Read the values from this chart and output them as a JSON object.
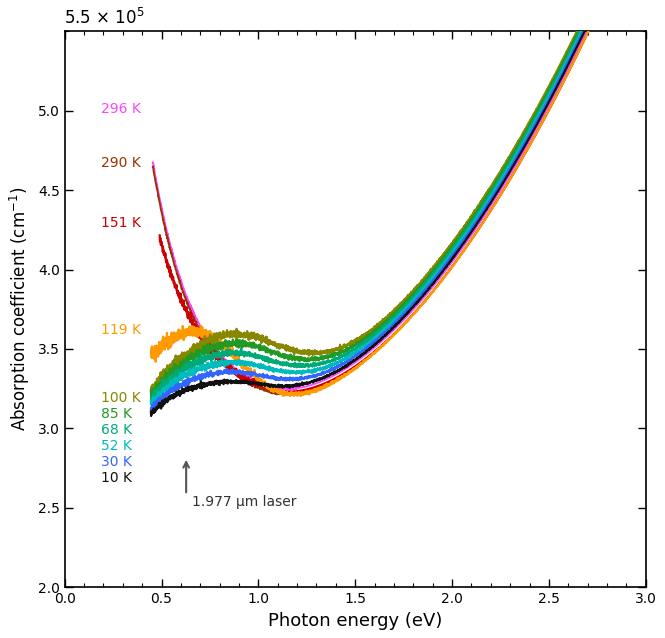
{
  "xlabel": "Photon energy (eV)",
  "ylabel": "Absorption coefficient (cm⁻¹)",
  "xlim": [
    0.0,
    3.0
  ],
  "ylim": [
    200000.0,
    550000.0
  ],
  "yticks": [
    200000.0,
    250000.0,
    300000.0,
    350000.0,
    400000.0,
    450000.0,
    500000.0
  ],
  "xticks": [
    0.0,
    0.5,
    1.0,
    1.5,
    2.0,
    2.5,
    3.0
  ],
  "curves": [
    {
      "label": "296 K",
      "color": "#FF44FF",
      "lw": 1.3,
      "temp": 296
    },
    {
      "label": "290 K",
      "color": "#993300",
      "lw": 1.3,
      "temp": 290
    },
    {
      "label": "151 K",
      "color": "#CC0000",
      "lw": 1.6,
      "temp": 151
    },
    {
      "label": "119 K",
      "color": "#FF9900",
      "lw": 1.6,
      "temp": 119
    },
    {
      "label": "100 K",
      "color": "#888800",
      "lw": 1.6,
      "temp": 100
    },
    {
      "label": "85 K",
      "color": "#229922",
      "lw": 1.6,
      "temp": 85
    },
    {
      "label": "68 K",
      "color": "#00AA77",
      "lw": 1.6,
      "temp": 68
    },
    {
      "label": "52 K",
      "color": "#00BBBB",
      "lw": 1.6,
      "temp": 52
    },
    {
      "label": "30 K",
      "color": "#3366FF",
      "lw": 1.6,
      "temp": 30
    },
    {
      "label": "10 K",
      "color": "#111111",
      "lw": 1.6,
      "temp": 10
    }
  ],
  "laser_x": 0.627,
  "laser_label": "1.977 μm laser",
  "background_color": "#ffffff"
}
